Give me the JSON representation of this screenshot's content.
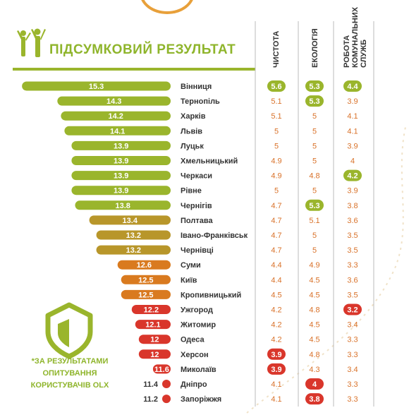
{
  "header": {
    "title": "ПІДСУМКОВИЙ РЕЗУЛЬТАТ",
    "columns": [
      "ЧИСТОТА",
      "ЕКОЛОГІЯ",
      "РОБОТА КОМУНАЛЬНИХ СЛУЖБ"
    ]
  },
  "footnote": {
    "line1": "*ЗА РЕЗУЛЬТАТАМИ",
    "line2": "ОПИТУВАННЯ",
    "line3": "КОРИСТУВАЧІВ OLX"
  },
  "icons": {
    "people": "people-raised-arms-icon",
    "shield": "shield-icon"
  },
  "colors": {
    "high": "#9ab52c",
    "mid": "#b8962a",
    "midlow": "#d97a1f",
    "low": "#d9362b",
    "value_text": "#d9722a",
    "value_text_dark": "#555555",
    "highlight_green": "#9ab52c",
    "highlight_red": "#d9362b"
  },
  "chart_data": {
    "type": "bar",
    "categories": [
      "Вінниця",
      "Тернопіль",
      "Харків",
      "Львів",
      "Луцьк",
      "Хмельницький",
      "Черкаси",
      "Рівне",
      "Чернігів",
      "Полтава",
      "Івано-Франківськ",
      "Чернівці",
      "Суми",
      "Київ",
      "Кропивницький",
      "Ужгород",
      "Житомир",
      "Одеса",
      "Херсон",
      "Миколаїв",
      "Дніпро",
      "Запоріжжя"
    ],
    "values": [
      15.3,
      14.3,
      14.2,
      14.1,
      13.9,
      13.9,
      13.9,
      13.9,
      13.8,
      13.4,
      13.2,
      13.2,
      12.6,
      12.5,
      12.5,
      12.2,
      12.1,
      12,
      12,
      11.6,
      11.4,
      11.2
    ],
    "value_labels": [
      "15.3",
      "14.3",
      "14.2",
      "14.1",
      "13.9",
      "13.9",
      "13.9",
      "13.9",
      "13.8",
      "13.4",
      "13.2",
      "13.2",
      "12.6",
      "12.5",
      "12.5",
      "12.2",
      "12.1",
      "12",
      "12",
      "11.6",
      "11.4",
      "11.2"
    ],
    "table": {
      "columns": [
        "ЧИСТОТА",
        "ЕКОЛОГІЯ",
        "РОБОТА КОМУНАЛЬНИХ СЛУЖБ"
      ],
      "rows": [
        [
          "5.6",
          "5.3",
          "4.4"
        ],
        [
          "5.1",
          "5.3",
          "3.9"
        ],
        [
          "5.1",
          "5",
          "4.1"
        ],
        [
          "5",
          "5",
          "4.1"
        ],
        [
          "5",
          "5",
          "3.9"
        ],
        [
          "4.9",
          "5",
          "4"
        ],
        [
          "4.9",
          "4.8",
          "4.2"
        ],
        [
          "5",
          "5",
          "3.9"
        ],
        [
          "4.7",
          "5.3",
          "3.8"
        ],
        [
          "4.7",
          "5.1",
          "3.6"
        ],
        [
          "4.7",
          "5",
          "3.5"
        ],
        [
          "4.7",
          "5",
          "3.5"
        ],
        [
          "4.4",
          "4.9",
          "3.3"
        ],
        [
          "4.4",
          "4.5",
          "3.6"
        ],
        [
          "4.5",
          "4.5",
          "3.5"
        ],
        [
          "4.2",
          "4.8",
          "3.2"
        ],
        [
          "4.2",
          "4.5",
          "3.4"
        ],
        [
          "4.2",
          "4.5",
          "3.3"
        ],
        [
          "3.9",
          "4.8",
          "3.3"
        ],
        [
          "3.9",
          "4.3",
          "3.4"
        ],
        [
          "4.1",
          "4",
          "3.3"
        ],
        [
          "4.1",
          "3.8",
          "3.3"
        ]
      ],
      "highlights": [
        {
          "row": 0,
          "col": 0,
          "color": "green"
        },
        {
          "row": 0,
          "col": 1,
          "color": "green"
        },
        {
          "row": 0,
          "col": 2,
          "color": "green"
        },
        {
          "row": 1,
          "col": 1,
          "color": "green"
        },
        {
          "row": 6,
          "col": 2,
          "color": "green"
        },
        {
          "row": 8,
          "col": 1,
          "color": "green"
        },
        {
          "row": 15,
          "col": 2,
          "color": "red"
        },
        {
          "row": 18,
          "col": 0,
          "color": "red"
        },
        {
          "row": 19,
          "col": 0,
          "color": "red"
        },
        {
          "row": 20,
          "col": 1,
          "color": "red"
        },
        {
          "row": 21,
          "col": 1,
          "color": "red"
        }
      ]
    },
    "ylim": [
      11,
      15.3
    ],
    "grid": false
  }
}
